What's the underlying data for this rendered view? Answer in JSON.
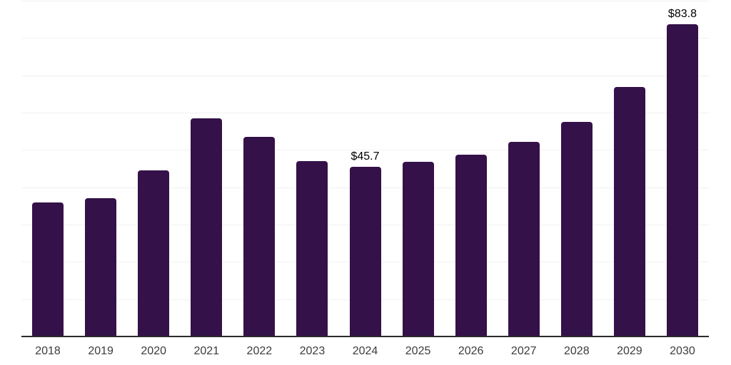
{
  "chart_data": {
    "type": "bar",
    "title": "",
    "xlabel": "",
    "ylabel": "",
    "categories": [
      "2018",
      "2019",
      "2020",
      "2021",
      "2022",
      "2023",
      "2024",
      "2025",
      "2026",
      "2027",
      "2028",
      "2029",
      "2030"
    ],
    "values": [
      36.1,
      37.2,
      44.7,
      58.7,
      53.7,
      47.2,
      45.7,
      47.0,
      48.9,
      52.4,
      57.7,
      67.1,
      83.8
    ],
    "data_labels": {
      "2024": "$45.7",
      "2030": "$83.8"
    },
    "ylim": [
      0,
      90
    ],
    "gridline_step": 10,
    "grid": true,
    "legend": "none",
    "colors": {
      "bar": "#341149",
      "gridline": "#f1f1f3",
      "axis_line": "#2b2b2b",
      "tick_label": "#3c3c3c",
      "value_label": "#000000",
      "background": "#ffffff"
    }
  }
}
